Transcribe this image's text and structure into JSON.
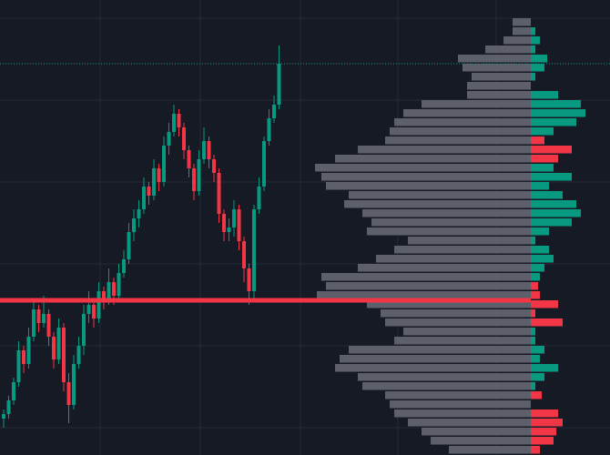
{
  "chart_data": {
    "type": "candlestick",
    "ylim": [
      0,
      100
    ],
    "up_color": "#089981",
    "down_color": "#f23645",
    "open": [
      8,
      9,
      12,
      16,
      23,
      20,
      26,
      32,
      29,
      31,
      26,
      21,
      28,
      16,
      11,
      20,
      24,
      31,
      33,
      30,
      36,
      34,
      38,
      35,
      40,
      43,
      49,
      52,
      54,
      59,
      57,
      63,
      60,
      68,
      71,
      75,
      72,
      67,
      63,
      58,
      65,
      69,
      65,
      62,
      53,
      49,
      50,
      54,
      47,
      41,
      36,
      54,
      59,
      69,
      74,
      77
    ],
    "high": [
      10,
      13,
      17,
      25,
      24,
      28,
      34,
      33,
      35,
      32,
      27,
      30,
      29,
      18,
      22,
      26,
      33,
      36,
      34,
      38,
      37,
      41,
      39,
      42,
      45,
      51,
      54,
      56,
      61,
      60,
      65,
      64,
      70,
      73,
      77,
      76,
      73,
      68,
      64,
      67,
      72,
      70,
      66,
      63,
      54,
      52,
      56,
      55,
      48,
      42,
      55,
      61,
      70,
      76,
      79,
      90
    ],
    "low": [
      6,
      8,
      11,
      15,
      18,
      19,
      25,
      27,
      28,
      24,
      19,
      20,
      14,
      7,
      10,
      19,
      22,
      29,
      28,
      29,
      32,
      33,
      33,
      34,
      39,
      42,
      47,
      50,
      53,
      55,
      56,
      58,
      59,
      66,
      70,
      70,
      65,
      61,
      56,
      57,
      64,
      63,
      60,
      51,
      47,
      47,
      48,
      45,
      38,
      33,
      34,
      53,
      58,
      68,
      73,
      76
    ],
    "close": [
      9,
      12,
      16,
      23,
      20,
      26,
      32,
      29,
      31,
      26,
      21,
      28,
      16,
      11,
      20,
      24,
      31,
      33,
      30,
      36,
      34,
      38,
      35,
      40,
      43,
      49,
      52,
      54,
      59,
      57,
      63,
      60,
      68,
      71,
      75,
      72,
      67,
      63,
      58,
      65,
      69,
      65,
      62,
      53,
      49,
      50,
      54,
      47,
      41,
      36,
      54,
      59,
      69,
      74,
      77,
      86
    ],
    "price_line": 86,
    "price_line_color": "#089981",
    "level_line": 34,
    "level_line_color": "#f23645",
    "volume_profile": {
      "bins": [
        0,
        2,
        4,
        6,
        8,
        10,
        12,
        14,
        16,
        18,
        20,
        22,
        24,
        26,
        28,
        30,
        32,
        34,
        36,
        38,
        40,
        42,
        44,
        46,
        48,
        50,
        52,
        54,
        56,
        58,
        60,
        62,
        64,
        66,
        68,
        70,
        72,
        74,
        76,
        78,
        80,
        82,
        84,
        86,
        88,
        90,
        92,
        94,
        96
      ],
      "volume": [
        90,
        110,
        120,
        135,
        150,
        155,
        160,
        185,
        190,
        215,
        210,
        200,
        150,
        140,
        160,
        165,
        180,
        235,
        225,
        230,
        190,
        170,
        150,
        135,
        180,
        175,
        185,
        205,
        200,
        225,
        230,
        237,
        215,
        190,
        160,
        155,
        150,
        140,
        120,
        70,
        70,
        65,
        75,
        80,
        50,
        30,
        20,
        20
      ],
      "delta": [
        -10,
        -25,
        -28,
        -35,
        -30,
        0,
        -12,
        5,
        15,
        30,
        10,
        15,
        5,
        5,
        -35,
        -5,
        -30,
        -10,
        -8,
        10,
        15,
        25,
        20,
        5,
        20,
        45,
        55,
        50,
        35,
        20,
        45,
        25,
        -30,
        -45,
        -15,
        25,
        50,
        60,
        55,
        30,
        0,
        5,
        15,
        18,
        5,
        10,
        5,
        0
      ],
      "volume_color": "#5d606b"
    }
  }
}
